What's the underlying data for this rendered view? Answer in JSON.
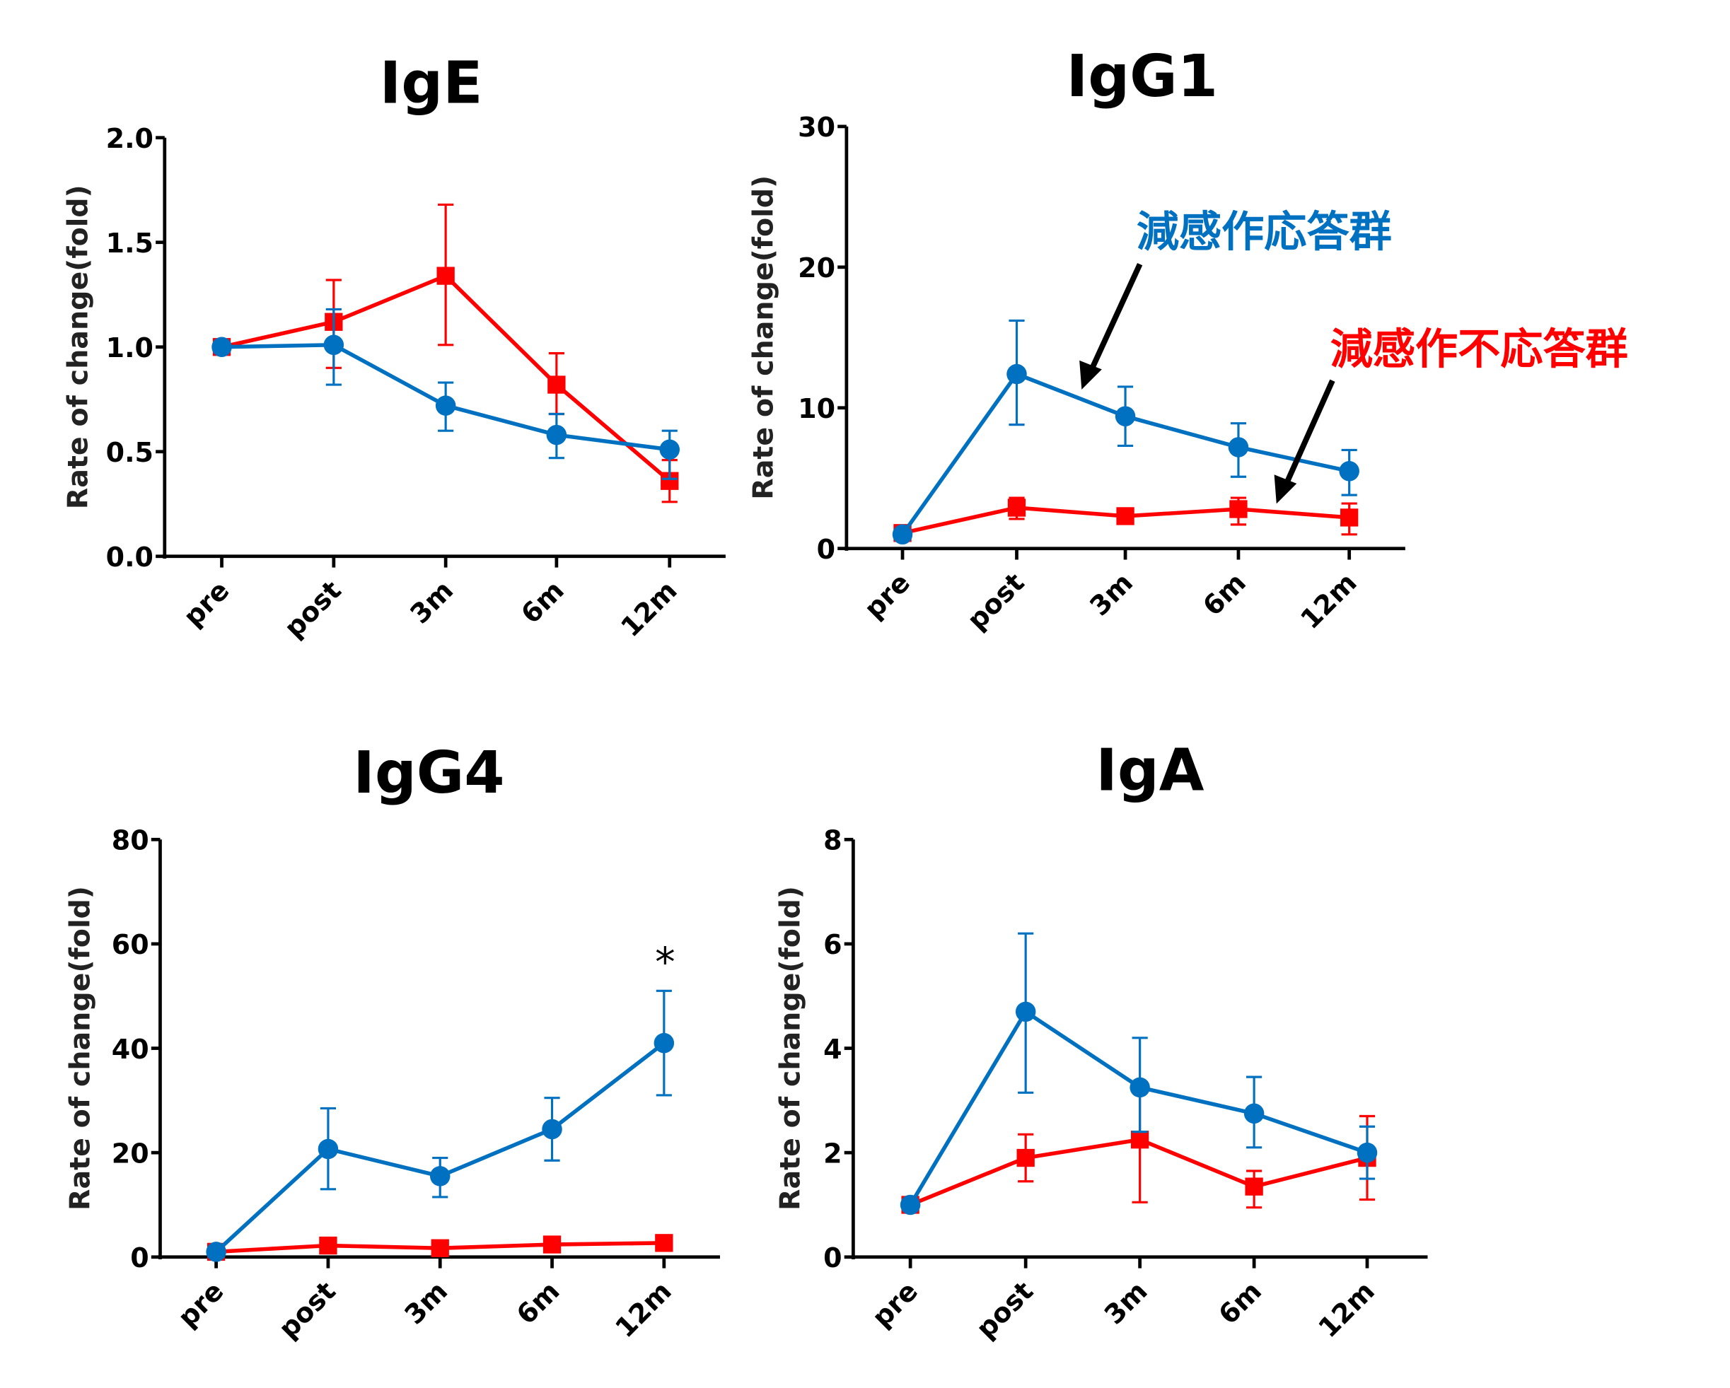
{
  "colors": {
    "responder": "#0070c0",
    "non_responder": "#ff0000",
    "axis": "#000000"
  },
  "annotations": {
    "responder_label": "減感作応答群",
    "non_responder_label": "減感作不応答群",
    "significance": "*"
  },
  "chart_data": [
    {
      "type": "line",
      "title": "IgE",
      "ylabel": "Rate of change(fold)",
      "ylim": [
        0,
        2
      ],
      "yticks": [
        "0.0",
        "0.5",
        "1.0",
        "1.5",
        "2.0"
      ],
      "ytick_values": [
        0,
        0.5,
        1,
        1.5,
        2
      ],
      "categories": [
        "pre",
        "post",
        "3m",
        "6m",
        "12m"
      ],
      "series": [
        {
          "group": "responder",
          "marker": "circle",
          "values": [
            1.0,
            1.01,
            0.72,
            0.58,
            0.51
          ],
          "err_low": [
            1.0,
            0.82,
            0.6,
            0.47,
            0.37
          ],
          "err_high": [
            1.0,
            1.18,
            0.83,
            0.68,
            0.6
          ]
        },
        {
          "group": "non_responder",
          "marker": "square",
          "values": [
            1.0,
            1.12,
            1.34,
            0.82,
            0.36
          ],
          "err_low": [
            1.0,
            0.9,
            1.01,
            0.68,
            0.26
          ],
          "err_high": [
            1.0,
            1.32,
            1.68,
            0.97,
            0.46
          ]
        }
      ]
    },
    {
      "type": "line",
      "title": "IgG1",
      "ylabel": "Rate of change(fold)",
      "ylim": [
        0,
        30
      ],
      "yticks": [
        "0",
        "10",
        "20",
        "30"
      ],
      "ytick_values": [
        0,
        10,
        20,
        30
      ],
      "categories": [
        "pre",
        "post",
        "3m",
        "6m",
        "12m"
      ],
      "series": [
        {
          "group": "responder",
          "marker": "circle",
          "values": [
            1.0,
            12.4,
            9.4,
            7.2,
            5.5
          ],
          "err_low": [
            1.0,
            8.8,
            7.3,
            5.1,
            3.8
          ],
          "err_high": [
            1.0,
            16.2,
            11.5,
            8.9,
            7.0
          ]
        },
        {
          "group": "non_responder",
          "marker": "square",
          "values": [
            1.1,
            2.9,
            2.3,
            2.8,
            2.2
          ],
          "err_low": [
            1.1,
            2.1,
            2.3,
            1.7,
            1.0
          ],
          "err_high": [
            1.1,
            3.6,
            2.3,
            3.6,
            3.2
          ]
        }
      ]
    },
    {
      "type": "line",
      "title": "IgG4",
      "ylabel": "Rate of change(fold)",
      "ylim": [
        0,
        80
      ],
      "yticks": [
        "0",
        "20",
        "40",
        "60",
        "80"
      ],
      "ytick_values": [
        0,
        20,
        40,
        60,
        80
      ],
      "categories": [
        "pre",
        "post",
        "3m",
        "6m",
        "12m"
      ],
      "series": [
        {
          "group": "responder",
          "marker": "circle",
          "values": [
            1.0,
            20.7,
            15.5,
            24.5,
            41.0
          ],
          "err_low": [
            1.0,
            13.0,
            11.5,
            18.5,
            31.0
          ],
          "err_high": [
            1.0,
            28.5,
            19.0,
            30.5,
            51.0
          ]
        },
        {
          "group": "non_responder",
          "marker": "square",
          "values": [
            1.0,
            2.2,
            1.7,
            2.4,
            2.7
          ],
          "err_low": [
            1.0,
            2.2,
            1.7,
            2.4,
            2.7
          ],
          "err_high": [
            1.0,
            2.2,
            1.7,
            2.4,
            2.7
          ]
        }
      ]
    },
    {
      "type": "line",
      "title": "IgA",
      "ylabel": "Rate of change(fold)",
      "ylim": [
        0,
        8
      ],
      "yticks": [
        "0",
        "2",
        "4",
        "6",
        "8"
      ],
      "ytick_values": [
        0,
        2,
        4,
        6,
        8
      ],
      "categories": [
        "pre",
        "post",
        "3m",
        "6m",
        "12m"
      ],
      "series": [
        {
          "group": "responder",
          "marker": "circle",
          "values": [
            1.0,
            4.7,
            3.25,
            2.75,
            2.0
          ],
          "err_low": [
            1.0,
            3.15,
            2.4,
            2.1,
            1.5
          ],
          "err_high": [
            1.0,
            6.2,
            4.2,
            3.45,
            2.5
          ]
        },
        {
          "group": "non_responder",
          "marker": "square",
          "values": [
            1.0,
            1.9,
            2.25,
            1.35,
            1.9
          ],
          "err_low": [
            1.0,
            1.45,
            1.05,
            0.95,
            1.1
          ],
          "err_high": [
            1.0,
            2.35,
            3.35,
            1.65,
            2.7
          ]
        }
      ]
    }
  ]
}
